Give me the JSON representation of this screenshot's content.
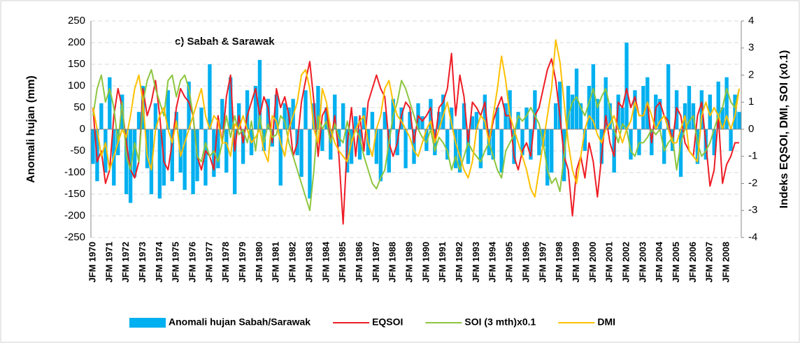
{
  "chart_data": {
    "type": "combo",
    "annotation": "c) Sabah & Sarawak",
    "y_label": "Anomali hujan (mm)",
    "y2_label": "Indeks EQSOI, DMI, SOI (x0.1)",
    "ylim": [
      -250,
      250
    ],
    "yticks": [
      -250,
      -200,
      -150,
      -100,
      -50,
      0,
      50,
      100,
      150,
      200,
      250
    ],
    "y2lim": [
      -4,
      4
    ],
    "y2ticks": [
      -4,
      -3,
      -2,
      -1,
      0,
      1,
      2,
      3,
      4
    ],
    "grid": true,
    "legend": "bottom",
    "categories": [
      "JFM 1970",
      null,
      null,
      null,
      "JFM 1971",
      null,
      null,
      null,
      "JFM 1972",
      null,
      null,
      null,
      "JFM 1973",
      null,
      null,
      null,
      "JFM 1974",
      null,
      null,
      null,
      "JFM 1975",
      null,
      null,
      null,
      "JFM 1976",
      null,
      null,
      null,
      "JFM 1977",
      null,
      null,
      null,
      "JFM 1978",
      null,
      null,
      null,
      "JFM 1979",
      null,
      null,
      null,
      "JFM 1980",
      null,
      null,
      null,
      "JFM 1981",
      null,
      null,
      null,
      "JFM 1982",
      null,
      null,
      null,
      "JFM 1983",
      null,
      null,
      null,
      "JFM 1984",
      null,
      null,
      null,
      "JFM 1985",
      null,
      null,
      null,
      "JFM 1986",
      null,
      null,
      null,
      "JFM 1987",
      null,
      null,
      null,
      "JFM 1988",
      null,
      null,
      null,
      "JFM 1989",
      null,
      null,
      null,
      "JFM 1990",
      null,
      null,
      null,
      "JFM 1991",
      null,
      null,
      null,
      "JFM 1992",
      null,
      null,
      null,
      "JFM 1993",
      null,
      null,
      null,
      "JFM 1994",
      null,
      null,
      null,
      "JFM 1995",
      null,
      null,
      null,
      "JFM 1996",
      null,
      null,
      null,
      "JFM 1997",
      null,
      null,
      null,
      "JFM 1998",
      null,
      null,
      null,
      "JFM 1999",
      null,
      null,
      null,
      "JFM 2000",
      null,
      null,
      null,
      "JFM 2001",
      null,
      null,
      null,
      "JFM 2002",
      null,
      null,
      null,
      "JFM 2003",
      null,
      null,
      null,
      "JFM 2004",
      null,
      null,
      null,
      "JFM 2005",
      null,
      null,
      null,
      "JFM 2006",
      null,
      null,
      null,
      "JFM 2007",
      null,
      null,
      null,
      "JFM 2008",
      null,
      null,
      null
    ],
    "series": [
      {
        "name": "Anomali hujan Sabah/Sarawak",
        "type": "bar",
        "color": "#00b0f0",
        "values": [
          -80,
          -120,
          60,
          -100,
          120,
          -130,
          -60,
          80,
          -150,
          -170,
          -110,
          40,
          100,
          -90,
          -150,
          60,
          -160,
          -130,
          90,
          -120,
          40,
          -100,
          -140,
          110,
          -150,
          -120,
          50,
          -130,
          150,
          -110,
          -90,
          70,
          -100,
          120,
          -150,
          60,
          -80,
          90,
          -60,
          100,
          160,
          -50,
          70,
          -40,
          80,
          -130,
          60,
          50,
          70,
          -60,
          -110,
          90,
          -160,
          60,
          100,
          -50,
          50,
          -70,
          80,
          -40,
          60,
          -100,
          -80,
          30,
          -70,
          50,
          -60,
          40,
          -80,
          -120,
          40,
          -100,
          70,
          -60,
          50,
          -90,
          40,
          -80,
          60,
          30,
          -50,
          70,
          -60,
          40,
          80,
          -70,
          50,
          -90,
          -100,
          60,
          -80,
          30,
          40,
          -90,
          80,
          -60,
          -70,
          50,
          -100,
          60,
          90,
          -80,
          40,
          -60,
          50,
          -70,
          90,
          -60,
          -40,
          -130,
          -100,
          60,
          110,
          -120,
          100,
          80,
          140,
          60,
          -50,
          100,
          150,
          70,
          -80,
          120,
          60,
          -100,
          80,
          50,
          200,
          -70,
          90,
          -60,
          100,
          120,
          -60,
          80,
          70,
          -80,
          150,
          -50,
          90,
          -110,
          60,
          100,
          60,
          -80,
          90,
          -70,
          80,
          -60,
          110,
          50,
          120,
          -50,
          80,
          40
        ]
      },
      {
        "name": "EQSOI",
        "type": "line",
        "axis": "y2",
        "color": "#ee1c25",
        "values": [
          0.8,
          -1.2,
          -0.8,
          -2.0,
          -1.5,
          0.5,
          1.5,
          0.8,
          -0.5,
          -1.5,
          -1.8,
          -1.2,
          1.5,
          0.5,
          1.0,
          1.8,
          0.5,
          -1.2,
          -1.5,
          -0.5,
          0.8,
          1.5,
          1.2,
          1.0,
          0.5,
          -1.0,
          -1.5,
          -0.8,
          -1.0,
          -1.5,
          0.5,
          -0.5,
          1.2,
          2.0,
          -0.8,
          0.5,
          -0.5,
          0.5,
          1.0,
          1.5,
          0.5,
          1.2,
          0.8,
          -0.5,
          1.5,
          0.8,
          1.2,
          0.5,
          -1.0,
          -0.5,
          1.0,
          1.8,
          2.5,
          1.0,
          -1.0,
          0.5,
          0.8,
          -0.5,
          0.5,
          -1.0,
          -3.5,
          -0.5,
          0.8,
          -1.0,
          0.5,
          -0.8,
          1.0,
          1.5,
          2.0,
          1.5,
          1.2,
          -0.5,
          -1.0,
          -0.5,
          0.5,
          1.0,
          0.8,
          -0.5,
          0.5,
          0.3,
          0.5,
          0.8,
          -0.5,
          0.8,
          1.0,
          1.5,
          2.8,
          0.5,
          2.0,
          1.2,
          -0.5,
          1.0,
          0.8,
          0.5,
          1.0,
          -0.5,
          0.3,
          0.8,
          1.2,
          0.5,
          0.5,
          -1.0,
          -1.5,
          -0.8,
          -0.5,
          -1.0,
          0.5,
          0.8,
          1.5,
          2.2,
          2.6,
          1.8,
          0.5,
          -1.0,
          -1.5,
          -3.2,
          -1.5,
          -1.0,
          -1.8,
          -0.5,
          -1.2,
          -2.5,
          -1.0,
          0.5,
          -0.5,
          -1.0,
          1.0,
          0.8,
          1.5,
          0.8,
          1.2,
          0.5,
          0.5,
          1.0,
          -0.5,
          0.8,
          1.0,
          0.5,
          0.3,
          -0.5,
          0.8,
          0.5,
          -0.5,
          -0.8,
          -1.0,
          0.5,
          1.0,
          -0.5,
          -2.1,
          -1.5,
          0.5,
          -2.0,
          -1.3,
          -1.0,
          -0.5,
          -0.5
        ]
      },
      {
        "name": "SOI (3 mth)x0.1",
        "type": "line",
        "axis": "y2",
        "color": "#8dc63f",
        "values": [
          0.5,
          1.5,
          2.0,
          1.0,
          1.5,
          0.8,
          -0.5,
          1.0,
          -1.0,
          -1.5,
          -0.5,
          -1.2,
          1.0,
          1.8,
          2.2,
          1.5,
          1.0,
          0.5,
          1.8,
          2.0,
          1.2,
          1.8,
          2.0,
          1.5,
          0.5,
          -1.0,
          -1.2,
          -0.5,
          -1.0,
          -0.8,
          -1.2,
          -0.5,
          0.5,
          -0.3,
          0.5,
          -0.2,
          0.0,
          -0.5,
          0.3,
          -0.8,
          0.5,
          -0.5,
          0.2,
          -0.3,
          -0.2,
          0.5,
          0.3,
          -0.5,
          -1.0,
          -1.5,
          -2.0,
          -2.5,
          -3.0,
          -1.5,
          0.5,
          0.0,
          0.3,
          -0.5,
          0.2,
          -0.3,
          -0.5,
          0.3,
          -0.5,
          0.0,
          -0.3,
          -1.0,
          -1.5,
          -2.0,
          -2.2,
          -1.8,
          -1.5,
          -0.5,
          0.5,
          1.0,
          1.8,
          1.5,
          1.0,
          0.5,
          0.0,
          -0.3,
          -0.5,
          0.0,
          -0.8,
          -0.3,
          -0.5,
          -0.8,
          -1.5,
          -1.0,
          -1.5,
          -1.0,
          -0.5,
          -0.8,
          -1.0,
          -1.2,
          -0.8,
          -0.5,
          -1.0,
          -1.5,
          -1.8,
          -0.8,
          -0.5,
          -0.2,
          0.5,
          0.3,
          0.5,
          0.8,
          0.5,
          0.2,
          -0.5,
          -1.5,
          -2.0,
          -1.8,
          -2.3,
          -1.0,
          0.5,
          1.0,
          1.2,
          0.8,
          0.5,
          1.0,
          1.5,
          0.8,
          1.2,
          1.5,
          0.8,
          0.0,
          -0.5,
          0.2,
          0.0,
          -0.8,
          -1.0,
          -0.5,
          -0.5,
          -0.3,
          0.0,
          -0.2,
          0.0,
          -0.8,
          -0.5,
          -0.3,
          -1.5,
          -0.5,
          0.0,
          0.3,
          0.5,
          -0.5,
          -1.0,
          -0.8,
          -0.5,
          0.0,
          0.5,
          0.8,
          1.5,
          1.0,
          0.8,
          1.5
        ]
      },
      {
        "name": "DMI",
        "type": "line",
        "axis": "y2",
        "color": "#ffc000",
        "values": [
          0.8,
          0.0,
          -1.0,
          -0.5,
          -1.5,
          -1.0,
          -0.5,
          0.0,
          -0.3,
          0.5,
          1.5,
          2.0,
          1.0,
          -1.0,
          -1.5,
          0.0,
          0.5,
          0.8,
          0.0,
          -0.5,
          0.3,
          -1.0,
          -0.5,
          0.0,
          0.5,
          1.0,
          1.5,
          0.5,
          0.0,
          0.5,
          0.3,
          -0.5,
          -0.5,
          -1.0,
          0.2,
          0.0,
          0.5,
          0.0,
          -0.5,
          -0.3,
          0.0,
          -0.8,
          -1.2,
          0.5,
          0.3,
          -0.5,
          -1.0,
          0.0,
          0.5,
          1.0,
          2.0,
          2.2,
          1.5,
          0.0,
          -0.5,
          1.5,
          1.0,
          0.0,
          -0.5,
          -0.8,
          -1.0,
          -1.2,
          -0.5,
          0.0,
          0.3,
          0.5,
          -0.5,
          -1.0,
          0.0,
          0.5,
          1.5,
          1.8,
          1.0,
          0.5,
          0.3,
          0.0,
          -0.3,
          -0.8,
          -1.0,
          -0.5,
          0.0,
          0.3,
          -0.5,
          0.0,
          0.5,
          1.0,
          0.2,
          -0.5,
          -1.0,
          -1.5,
          -1.8,
          -1.2,
          0.0,
          0.5,
          0.3,
          -0.5,
          0.5,
          1.5,
          2.7,
          1.8,
          0.5,
          0.0,
          -0.5,
          -1.0,
          -1.5,
          -2.2,
          -2.5,
          -1.5,
          -0.5,
          0.5,
          1.5,
          3.3,
          2.5,
          1.0,
          -0.5,
          -1.5,
          -2.0,
          -1.0,
          0.0,
          0.5,
          0.3,
          -0.2,
          -0.5,
          0.0,
          0.2,
          0.5,
          0.0,
          -0.5,
          0.0,
          0.3,
          1.0,
          0.5,
          0.5,
          1.0,
          0.5,
          0.0,
          0.3,
          0.5,
          0.0,
          -0.5,
          -0.5,
          0.0,
          0.5,
          -0.8,
          -1.0,
          -1.2,
          0.5,
          1.0,
          0.5,
          0.8,
          0.5,
          0.0,
          0.5,
          0.0,
          0.5,
          1.5
        ]
      }
    ]
  }
}
